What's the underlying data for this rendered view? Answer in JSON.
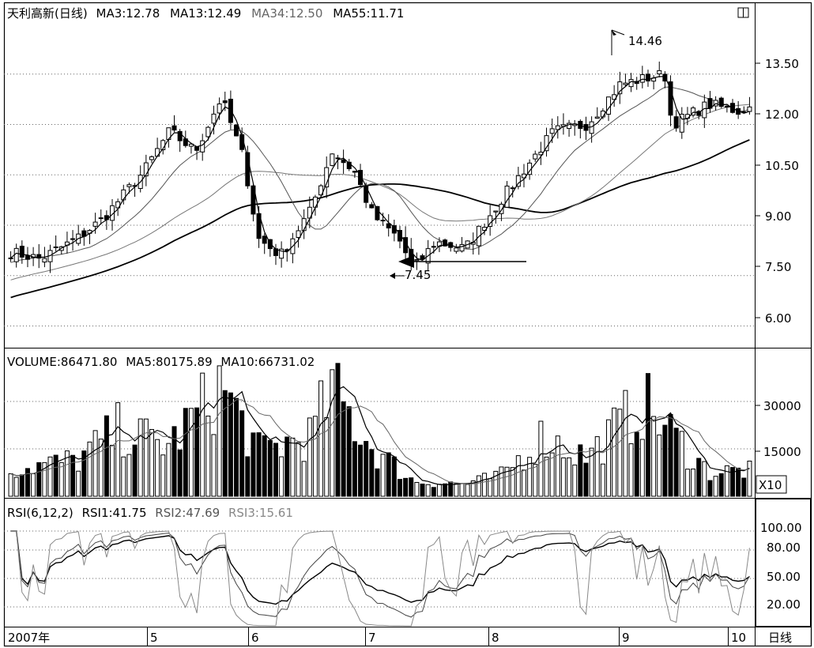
{
  "price_panel": {
    "title": "天利高新(日线)",
    "ma3": "MA3:12.78",
    "ma13": "MA13:12.49",
    "ma34": "MA34:12.50",
    "ma55": "MA55:11.71",
    "high_label": "14.46",
    "low_label": "7.45",
    "y_ticks": [
      "13.50",
      "12.00",
      "10.50",
      "9.00",
      "7.50",
      "6.00"
    ]
  },
  "volume_panel": {
    "title": "VOLUME:86471.80",
    "ma5": "MA5:80175.89",
    "ma10": "MA10:66731.02",
    "y_ticks": [
      "30000",
      "15000"
    ],
    "unit": "X10"
  },
  "rsi_panel": {
    "title": "RSI(6,12,2)",
    "rsi1": "RSI1:41.75",
    "rsi2": "RSI2:47.69",
    "rsi3": "RSI3:15.61",
    "y_ticks": [
      "100.00",
      "80.00",
      "50.00",
      "20.00"
    ]
  },
  "x_axis": {
    "labels": [
      "2007年",
      "5",
      "6",
      "7",
      "8",
      "9",
      "10"
    ],
    "period": "日线"
  },
  "chart_data": [
    {
      "type": "candlestick",
      "title": "天利高新(日线)",
      "ylim": [
        5.4,
        15.0
      ],
      "x_months": [
        "2007-04",
        "2007-05",
        "2007-06",
        "2007-07",
        "2007-08",
        "2007-09",
        "2007-10"
      ],
      "approx_close_path": [
        [
          "2007-04-02",
          8.2
        ],
        [
          "2007-04-10",
          8.0
        ],
        [
          "2007-04-20",
          8.6
        ],
        [
          "2007-04-27",
          9.2
        ],
        [
          "2007-05-08",
          10.6
        ],
        [
          "2007-05-15",
          11.8
        ],
        [
          "2007-05-22",
          11.2
        ],
        [
          "2007-05-29",
          12.8
        ],
        [
          "2007-06-04",
          11.0
        ],
        [
          "2007-06-08",
          8.6
        ],
        [
          "2007-06-14",
          8.1
        ],
        [
          "2007-06-22",
          9.4
        ],
        [
          "2007-06-28",
          11.2
        ],
        [
          "2007-07-04",
          10.6
        ],
        [
          "2007-07-09",
          9.3
        ],
        [
          "2007-07-16",
          8.6
        ],
        [
          "2007-07-20",
          7.7
        ],
        [
          "2007-07-26",
          8.5
        ],
        [
          "2007-08-03",
          8.3
        ],
        [
          "2007-08-13",
          9.8
        ],
        [
          "2007-08-20",
          10.8
        ],
        [
          "2007-08-27",
          11.8
        ],
        [
          "2007-09-05",
          12.0
        ],
        [
          "2007-09-14",
          13.2
        ],
        [
          "2007-09-26",
          13.5
        ],
        [
          "2007-09-28",
          12.0
        ],
        [
          "2007-10-08",
          12.6
        ],
        [
          "2007-10-16",
          12.4
        ],
        [
          "2007-10-19",
          12.5
        ]
      ],
      "annotations": [
        {
          "text": "14.46",
          "x": "2007-09-20",
          "y": 14.46
        },
        {
          "text": "7.45",
          "x": "2007-07-23",
          "y": 7.45
        }
      ],
      "moving_averages": [
        {
          "name": "MA3",
          "last": 12.78
        },
        {
          "name": "MA13",
          "last": 12.49
        },
        {
          "name": "MA34",
          "last": 12.5
        },
        {
          "name": "MA55",
          "last": 11.71
        }
      ]
    },
    {
      "type": "bar",
      "title": "VOLUME:86471.80",
      "unit_multiplier": "X10",
      "ylim": [
        0,
        40000
      ],
      "approx_volume_path": [
        [
          "2007-04-02",
          9000
        ],
        [
          "2007-04-20",
          12000
        ],
        [
          "2007-05-01",
          22000
        ],
        [
          "2007-05-15",
          17000
        ],
        [
          "2007-05-29",
          37000
        ],
        [
          "2007-06-08",
          15000
        ],
        [
          "2007-06-22",
          20000
        ],
        [
          "2007-06-28",
          35000
        ],
        [
          "2007-07-09",
          16000
        ],
        [
          "2007-07-20",
          5000
        ],
        [
          "2007-08-03",
          4000
        ],
        [
          "2007-08-13",
          7000
        ],
        [
          "2007-08-24",
          20000
        ],
        [
          "2007-09-05",
          13000
        ],
        [
          "2007-09-20",
          31000
        ],
        [
          "2007-10-08",
          8000
        ],
        [
          "2007-10-19",
          8600
        ]
      ],
      "moving_averages": [
        {
          "name": "MA5",
          "last": 80175.89
        },
        {
          "name": "MA10",
          "last": 66731.02
        }
      ]
    },
    {
      "type": "line",
      "title": "RSI(6,12,2)",
      "ylim": [
        0,
        110
      ],
      "series": [
        {
          "name": "RSI1",
          "last": 41.75
        },
        {
          "name": "RSI2",
          "last": 47.69
        },
        {
          "name": "RSI3",
          "last": 15.61
        }
      ]
    }
  ]
}
